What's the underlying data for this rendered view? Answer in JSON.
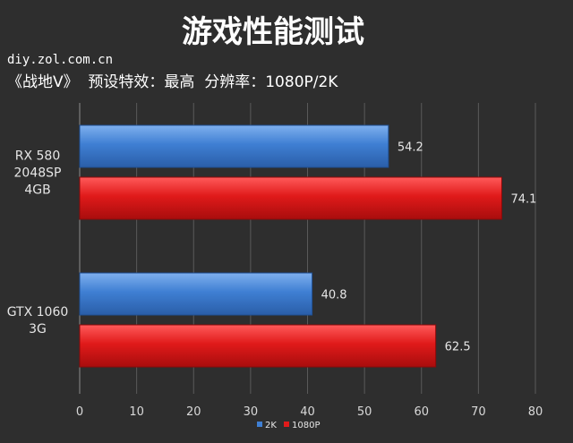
{
  "header": {
    "title": "游戏性能测试",
    "watermark": "diy.zol.com.cn",
    "subtitle": "《战地V》  预设特效：最高  分辨率：1080P/2K"
  },
  "chart_data": {
    "type": "bar",
    "orientation": "horizontal",
    "categories": [
      [
        "RX 580",
        "2048SP",
        "4GB"
      ],
      [
        "GTX 1060",
        "3G"
      ]
    ],
    "series": [
      {
        "name": "2K",
        "values": [
          54.2,
          40.8
        ],
        "color": "#3f7fd3"
      },
      {
        "name": "1080P",
        "values": [
          74.1,
          62.5
        ],
        "color": "#e01a1a"
      }
    ],
    "xlim": [
      0,
      80
    ],
    "xticks": [
      0,
      10,
      20,
      30,
      40,
      50,
      60,
      70,
      80
    ],
    "grid": true,
    "legend": "bottom"
  }
}
